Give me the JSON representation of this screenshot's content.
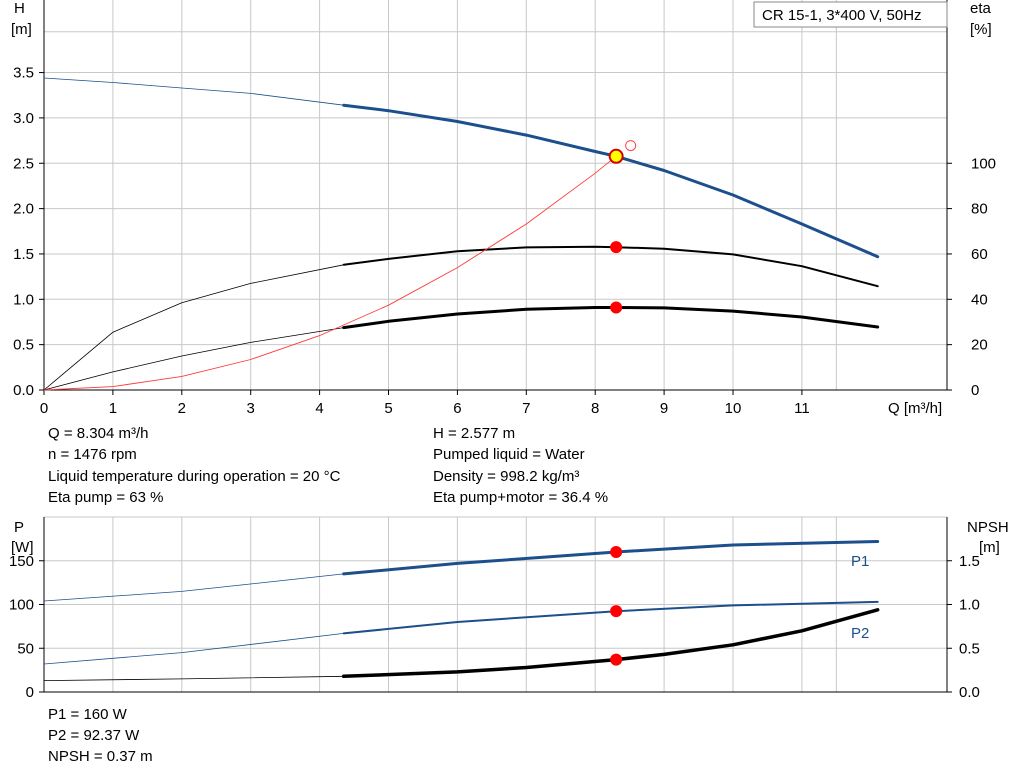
{
  "title_box": "CR 15-1, 3*400 V, 50Hz",
  "colors": {
    "blue": "#1c4f8c",
    "red_point": "#ff0000",
    "sys_curve": "#ff3b3b",
    "grid": "#c8c8c8",
    "black": "#000000",
    "yellow": "#ffff00"
  },
  "chart_data": [
    {
      "type": "line",
      "name": "pump-curves",
      "xlabel": "Q [m³/h]",
      "ylabel_left": [
        "H",
        "[m]"
      ],
      "ylabel_right": [
        "eta",
        "[%]"
      ],
      "xlim": [
        0,
        13
      ],
      "x_ticks": [
        0,
        1,
        2,
        3,
        4,
        5,
        6,
        7,
        8,
        9,
        10,
        11
      ],
      "ylim_left": [
        0,
        4.3
      ],
      "y_ticks_left": [
        0.0,
        0.5,
        1.0,
        1.5,
        2.0,
        2.5,
        3.0,
        3.5
      ],
      "y_tick_labels_left": [
        "0.0",
        "0.5",
        "1.0",
        "1.5",
        "2.0",
        "2.5",
        "3.0",
        "3.5"
      ],
      "ylim_right": [
        0,
        172
      ],
      "y_ticks_right": [
        0,
        20,
        40,
        60,
        80,
        100
      ],
      "series": [
        {
          "key": "H",
          "axis": "left",
          "color": "blue",
          "x": [
            0,
            1,
            2,
            3,
            4.35,
            5,
            6,
            7,
            8,
            8.304,
            9,
            10,
            11,
            12.1
          ],
          "y": [
            3.44,
            3.39,
            3.33,
            3.27,
            3.14,
            3.08,
            2.96,
            2.81,
            2.63,
            2.577,
            2.42,
            2.15,
            1.83,
            1.47
          ]
        },
        {
          "key": "eta-pump",
          "axis": "right",
          "color": "black",
          "x": [
            0,
            1,
            2,
            3,
            4.35,
            5,
            6,
            7,
            8,
            8.304,
            9,
            10,
            11,
            12.1
          ],
          "y": [
            0,
            25.5,
            38.5,
            47,
            55.2,
            57.8,
            61.2,
            62.9,
            63.2,
            63,
            62.3,
            59.8,
            54.6,
            45.8
          ]
        },
        {
          "key": "eta-pump-motor",
          "axis": "right",
          "color": "black",
          "x": [
            0,
            1,
            2,
            3,
            4.35,
            5,
            6,
            7,
            8,
            8.304,
            9,
            10,
            11,
            12.1
          ],
          "y": [
            0,
            8,
            15,
            21,
            27.5,
            30.3,
            33.5,
            35.6,
            36.4,
            36.4,
            36.2,
            34.8,
            32.2,
            27.8
          ]
        },
        {
          "key": "system",
          "axis": "left",
          "color": "sys_curve",
          "x": [
            0,
            1,
            2,
            3,
            4,
            5,
            6,
            7,
            8,
            8.304
          ],
          "y": [
            0,
            0.037,
            0.15,
            0.336,
            0.6,
            0.935,
            1.35,
            1.83,
            2.39,
            2.577
          ]
        }
      ],
      "duty_points": [
        {
          "x": 8.304,
          "y": 2.577,
          "axis": "left",
          "style": "yellow"
        },
        {
          "x": 8.304,
          "y": 63,
          "axis": "right",
          "style": "red"
        },
        {
          "x": 8.304,
          "y": 36.4,
          "axis": "right",
          "style": "red"
        }
      ],
      "open_marker": {
        "x": 8.5,
        "y": 2.7,
        "axis": "left"
      }
    },
    {
      "type": "line",
      "name": "power-npsh",
      "ylabel_left": [
        "P",
        "[W]"
      ],
      "ylabel_right": [
        "NPSH",
        "[m]"
      ],
      "xlim": [
        0,
        13
      ],
      "ylim_left": [
        0,
        200
      ],
      "y_ticks_left": [
        0,
        50,
        100,
        150
      ],
      "ylim_right": [
        0,
        2.0
      ],
      "y_ticks_right": [
        0.0,
        0.5,
        1.0,
        1.5
      ],
      "y_tick_labels_right": [
        "0.0",
        "0.5",
        "1.0",
        "1.5"
      ],
      "series": [
        {
          "key": "P1",
          "name": "P1",
          "axis": "left",
          "color": "blue",
          "x": [
            0,
            2,
            4.35,
            6,
            8.304,
            10,
            12.1
          ],
          "y": [
            104,
            115,
            135,
            147,
            160,
            168,
            172
          ]
        },
        {
          "key": "P2",
          "name": "P2",
          "axis": "left",
          "color": "blue",
          "x": [
            0,
            2,
            4.35,
            6,
            8.304,
            10,
            12.1
          ],
          "y": [
            32,
            45,
            67,
            80,
            92.37,
            99,
            103
          ]
        },
        {
          "key": "NPSH",
          "axis": "right",
          "color": "black",
          "x": [
            0,
            2,
            4.35,
            6,
            7,
            8.304,
            9,
            10,
            11,
            12.1
          ],
          "y": [
            0.13,
            0.15,
            0.18,
            0.23,
            0.28,
            0.37,
            0.43,
            0.54,
            0.7,
            0.94
          ]
        }
      ],
      "duty_points": [
        {
          "x": 8.304,
          "y": 160,
          "axis": "left",
          "style": "red"
        },
        {
          "x": 8.304,
          "y": 92.37,
          "axis": "left",
          "style": "red"
        },
        {
          "x": 8.304,
          "y": 0.37,
          "axis": "right",
          "style": "red"
        }
      ]
    }
  ],
  "operating_values": {
    "q": "Q = 8.304 m³/h",
    "n": "n = 1476 rpm",
    "liquid_temp": "Liquid temperature during operation = 20 °C",
    "eta_pump": "Eta pump = 63 %",
    "h": "H = 2.577 m",
    "pumped_liquid": "Pumped liquid = Water",
    "density": "Density = 998.2 kg/m³",
    "eta_pump_motor": "Eta pump+motor = 36.4 %"
  },
  "power_values": {
    "p1": "P1 = 160 W",
    "p2": "P2 = 92.37 W",
    "npsh": "NPSH = 0.37 m"
  }
}
